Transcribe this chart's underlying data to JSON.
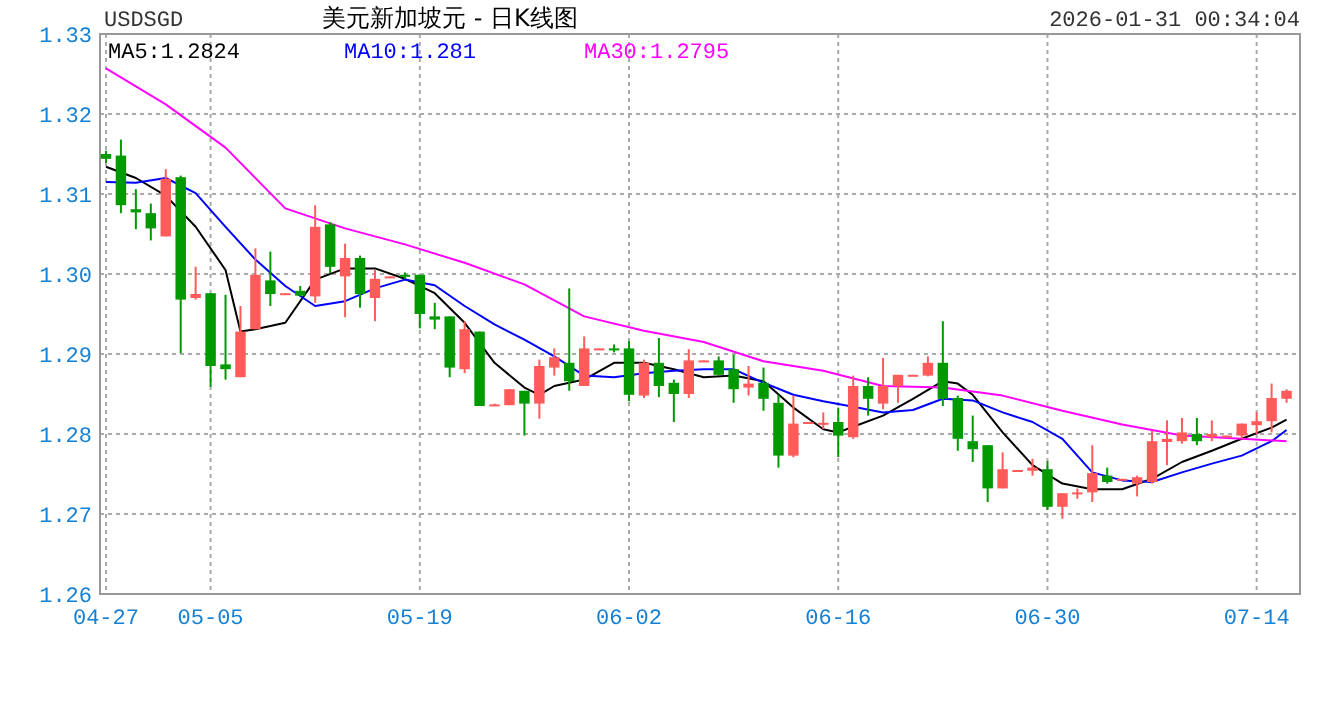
{
  "chart_data": {
    "type": "candlestick",
    "title": "美元新加坡元 - 日K线图",
    "ylabel": "USDSGD",
    "subtitle": "2026-01-31 00:34:04",
    "categories": [
      "04-27",
      null,
      null,
      null,
      null,
      null,
      null,
      "05-05",
      null,
      null,
      null,
      null,
      null,
      null,
      null,
      null,
      null,
      null,
      null,
      null,
      null,
      "05-19",
      null,
      null,
      null,
      null,
      null,
      null,
      null,
      null,
      null,
      null,
      null,
      null,
      null,
      "06-02",
      null,
      null,
      null,
      null,
      null,
      null,
      null,
      null,
      null,
      null,
      null,
      null,
      null,
      "06-16",
      null,
      null,
      null,
      null,
      null,
      null,
      null,
      null,
      null,
      null,
      null,
      null,
      null,
      "06-30",
      null,
      null,
      null,
      null,
      null,
      null,
      null,
      null,
      null,
      null,
      null,
      null,
      null,
      "07-14",
      null,
      null
    ],
    "ohlc": [
      [
        1.315,
        1.3154,
        1.3139,
        1.3144
      ],
      [
        1.3148,
        1.3168,
        1.3076,
        1.3086
      ],
      [
        1.3081,
        1.3106,
        1.3056,
        1.3077
      ],
      [
        1.3076,
        1.3088,
        1.3042,
        1.3057
      ],
      [
        1.3047,
        1.3131,
        1.3047,
        1.3119
      ],
      [
        1.3121,
        1.3123,
        1.2901,
        1.2968
      ],
      [
        1.297,
        1.3009,
        1.2968,
        1.2975
      ],
      [
        1.2976,
        1.2976,
        1.2859,
        1.2885
      ],
      [
        1.2887,
        1.2974,
        1.2868,
        1.2881
      ],
      [
        1.2871,
        1.296,
        1.2871,
        1.2928
      ],
      [
        1.2931,
        1.3032,
        1.2931,
        1.2999
      ],
      [
        1.2992,
        1.3028,
        1.296,
        1.2975
      ],
      [
        1.2975,
        1.2976,
        1.2975,
        1.2976
      ],
      [
        1.2979,
        1.2985,
        1.2972,
        1.2973
      ],
      [
        1.2972,
        1.3086,
        1.2964,
        1.3059
      ],
      [
        1.3062,
        1.3065,
        1.3001,
        1.3009
      ],
      [
        1.2997,
        1.3038,
        1.2946,
        1.302
      ],
      [
        1.302,
        1.3023,
        1.2958,
        1.2975
      ],
      [
        1.297,
        1.3005,
        1.2941,
        1.2994
      ],
      [
        1.2996,
        1.2997,
        1.2996,
        1.2997
      ],
      [
        1.2999,
        1.3002,
        1.2994,
        1.2997
      ],
      [
        1.2999,
        1.2999,
        1.2932,
        1.295
      ],
      [
        1.2947,
        1.2964,
        1.2931,
        1.2943
      ],
      [
        1.2947,
        1.2947,
        1.2871,
        1.2883
      ],
      [
        1.2881,
        1.2941,
        1.2876,
        1.2931
      ],
      [
        1.2928,
        1.2928,
        1.2835,
        1.2835
      ],
      [
        1.2836,
        1.2838,
        1.2836,
        1.2837
      ],
      [
        1.2836,
        1.2856,
        1.2836,
        1.2856
      ],
      [
        1.2854,
        1.2854,
        1.2798,
        1.2838
      ],
      [
        1.2838,
        1.2893,
        1.2819,
        1.2885
      ],
      [
        1.2883,
        1.2907,
        1.2873,
        1.2896
      ],
      [
        1.2889,
        1.2982,
        1.2854,
        1.2866
      ],
      [
        1.286,
        1.2922,
        1.286,
        1.2907
      ],
      [
        1.2906,
        1.2907,
        1.2906,
        1.2907
      ],
      [
        1.2907,
        1.2912,
        1.2902,
        1.2906
      ],
      [
        1.2907,
        1.2916,
        1.2841,
        1.2849
      ],
      [
        1.2848,
        1.2893,
        1.2845,
        1.2889
      ],
      [
        1.2889,
        1.292,
        1.2846,
        1.286
      ],
      [
        1.2864,
        1.2868,
        1.2815,
        1.285
      ],
      [
        1.285,
        1.2906,
        1.2845,
        1.2892
      ],
      [
        1.2891,
        1.2892,
        1.2891,
        1.2892
      ],
      [
        1.2892,
        1.2897,
        1.2873,
        1.2874
      ],
      [
        1.2881,
        1.2899,
        1.2839,
        1.2856
      ],
      [
        1.2858,
        1.2885,
        1.2848,
        1.2863
      ],
      [
        1.2864,
        1.2883,
        1.2829,
        1.2844
      ],
      [
        1.2839,
        1.2849,
        1.2758,
        1.2773
      ],
      [
        1.2773,
        1.2848,
        1.2771,
        1.2813
      ],
      [
        1.2814,
        1.2815,
        1.2814,
        1.2815
      ],
      [
        1.2813,
        1.2827,
        1.2806,
        1.2814
      ],
      [
        1.2815,
        1.2833,
        1.2771,
        1.2798
      ],
      [
        1.2796,
        1.2873,
        1.2794,
        1.286
      ],
      [
        1.286,
        1.2871,
        1.2823,
        1.2844
      ],
      [
        1.2838,
        1.2895,
        1.2831,
        1.286
      ],
      [
        1.286,
        1.2874,
        1.2839,
        1.2874
      ],
      [
        1.2873,
        1.2874,
        1.2873,
        1.2874
      ],
      [
        1.2873,
        1.2897,
        1.2872,
        1.2889
      ],
      [
        1.2889,
        1.2941,
        1.2835,
        1.2844
      ],
      [
        1.2845,
        1.2848,
        1.2779,
        1.2794
      ],
      [
        1.2791,
        1.2823,
        1.2765,
        1.2781
      ],
      [
        1.2786,
        1.2786,
        1.2715,
        1.2732
      ],
      [
        1.2732,
        1.2777,
        1.2732,
        1.2756
      ],
      [
        1.2754,
        1.2755,
        1.2754,
        1.2755
      ],
      [
        1.2754,
        1.2769,
        1.2748,
        1.2758
      ],
      [
        1.2756,
        1.2766,
        1.2705,
        1.2709
      ],
      [
        1.2709,
        1.2726,
        1.2694,
        1.2726
      ],
      [
        1.2726,
        1.2732,
        1.2719,
        1.2727
      ],
      [
        1.2727,
        1.2786,
        1.2715,
        1.2751
      ],
      [
        1.2748,
        1.2758,
        1.2738,
        1.274
      ],
      [
        1.2743,
        1.2744,
        1.2743,
        1.2744
      ],
      [
        1.2738,
        1.2748,
        1.2722,
        1.2746
      ],
      [
        1.274,
        1.2804,
        1.2738,
        1.2791
      ],
      [
        1.279,
        1.2817,
        1.2761,
        1.2794
      ],
      [
        1.2791,
        1.282,
        1.2788,
        1.2802
      ],
      [
        1.28,
        1.282,
        1.2786,
        1.2791
      ],
      [
        1.2796,
        1.2817,
        1.2791,
        1.28
      ],
      [
        1.2797,
        1.2798,
        1.2797,
        1.2798
      ],
      [
        1.2798,
        1.2813,
        1.2794,
        1.2813
      ],
      [
        1.2811,
        1.2827,
        1.28,
        1.2816
      ],
      [
        1.2816,
        1.2863,
        1.2802,
        1.2845
      ],
      [
        1.2844,
        1.2856,
        1.2839,
        1.2854
      ]
    ],
    "colors": [
      "#009900",
      "#009900",
      "#009900",
      "#009900",
      "#ff5b5b",
      "#009900",
      "#ff5b5b",
      "#009900",
      "#009900",
      "#ff5b5b",
      "#ff5b5b",
      "#009900",
      "#ff5b5b",
      "#009900",
      "#ff5b5b",
      "#009900",
      "#ff5b5b",
      "#009900",
      "#ff5b5b",
      "#ff5b5b",
      "#009900",
      "#009900",
      "#009900",
      "#009900",
      "#ff5b5b",
      "#009900",
      "#ff5b5b",
      "#ff5b5b",
      "#009900",
      "#ff5b5b",
      "#ff5b5b",
      "#009900",
      "#ff5b5b",
      "#ff5b5b",
      "#009900",
      "#009900",
      "#ff5b5b",
      "#009900",
      "#009900",
      "#ff5b5b",
      "#ff5b5b",
      "#009900",
      "#009900",
      "#ff5b5b",
      "#009900",
      "#009900",
      "#ff5b5b",
      "#ff5b5b",
      "#ff5b5b",
      "#009900",
      "#ff5b5b",
      "#009900",
      "#ff5b5b",
      "#ff5b5b",
      "#ff5b5b",
      "#ff5b5b",
      "#009900",
      "#009900",
      "#009900",
      "#009900",
      "#ff5b5b",
      "#ff5b5b",
      "#ff5b5b",
      "#009900",
      "#ff5b5b",
      "#ff5b5b",
      "#ff5b5b",
      "#009900",
      "#ff5b5b",
      "#ff5b5b",
      "#ff5b5b",
      "#ff5b5b",
      "#ff5b5b",
      "#009900",
      "#ff5b5b",
      "#ff5b5b",
      "#ff5b5b",
      "#ff5b5b",
      "#ff5b5b",
      "#ff5b5b"
    ],
    "series": [
      {
        "name": "MA5:1.2824",
        "type": "line",
        "color": "#000000",
        "values": [
          1.3134,
          null,
          1.312,
          null,
          1.3098,
          null,
          1.3059,
          null,
          1.3005,
          1.2928,
          1.2931,
          null,
          1.2939,
          null,
          1.2993,
          null,
          1.3007,
          null,
          1.3007,
          null,
          1.2994,
          null,
          1.2976,
          null,
          1.2939,
          1.2914,
          1.2889,
          null,
          1.2858,
          1.2849,
          1.286,
          null,
          1.2868,
          null,
          1.2889,
          null,
          1.2889,
          null,
          1.2881,
          null,
          1.2871,
          null,
          1.2873,
          null,
          1.2866,
          null,
          1.2833,
          null,
          1.2806,
          1.2802,
          1.2809,
          null,
          1.2823,
          null,
          1.2844,
          null,
          1.2866,
          1.2863,
          1.2849,
          null,
          1.2802,
          null,
          1.2761,
          null,
          1.2738,
          null,
          1.2731,
          null,
          1.2731,
          null,
          1.2744,
          null,
          1.2765,
          null,
          1.2779,
          null,
          1.2794,
          null,
          1.2808,
          1.2818
        ]
      },
      {
        "name": "MA10:1.281",
        "type": "line",
        "color": "#0000ff",
        "values": [
          1.3115,
          null,
          1.3114,
          null,
          1.312,
          null,
          1.3101,
          null,
          1.3059,
          null,
          1.3018,
          null,
          1.2985,
          null,
          1.296,
          null,
          1.2966,
          null,
          1.2982,
          null,
          1.2993,
          null,
          1.2986,
          null,
          1.296,
          null,
          1.2937,
          null,
          1.2918,
          null,
          1.2897,
          null,
          1.2873,
          null,
          1.2871,
          null,
          1.2876,
          null,
          1.2879,
          null,
          1.2881,
          null,
          1.2881,
          null,
          1.2864,
          null,
          1.2849,
          null,
          1.2841,
          null,
          1.2834,
          null,
          1.2827,
          null,
          1.283,
          null,
          1.2844,
          null,
          1.2842,
          null,
          1.2827,
          null,
          1.2815,
          null,
          1.2794,
          null,
          1.2752,
          null,
          1.2742,
          null,
          1.274,
          null,
          1.2752,
          null,
          1.2763,
          null,
          1.2773,
          null,
          1.2791,
          1.2805
        ]
      },
      {
        "name": "MA30:1.2795",
        "type": "line",
        "color": "#ff00ff",
        "values": [
          1.3257,
          null,
          null,
          null,
          1.3212,
          null,
          null,
          null,
          1.3158,
          null,
          null,
          null,
          1.3082,
          null,
          null,
          null,
          1.3057,
          null,
          null,
          null,
          1.3037,
          null,
          null,
          null,
          1.3014,
          null,
          null,
          null,
          1.2987,
          null,
          null,
          null,
          1.2947,
          null,
          null,
          null,
          1.2929,
          null,
          null,
          null,
          1.2915,
          null,
          null,
          null,
          1.2891,
          null,
          null,
          null,
          1.2879,
          null,
          null,
          null,
          1.286,
          null,
          null,
          null,
          1.2858,
          null,
          null,
          null,
          1.2848,
          null,
          null,
          null,
          1.2829,
          null,
          null,
          null,
          1.2812,
          null,
          null,
          null,
          1.2798,
          null,
          null,
          null,
          1.2794,
          null,
          null,
          1.2791
        ]
      }
    ],
    "ylim": [
      1.26,
      1.33
    ],
    "yticks": [
      1.26,
      1.27,
      1.28,
      1.29,
      {
        "value": 1.3,
        "label": "1.30"
      },
      1.31,
      1.32,
      1.33
    ],
    "grid": true
  }
}
